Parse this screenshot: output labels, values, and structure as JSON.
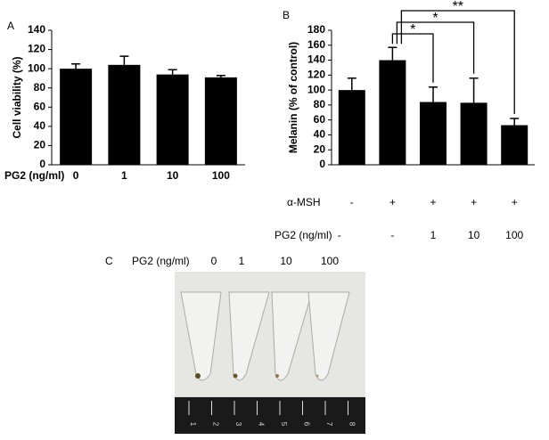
{
  "chart_data": [
    {
      "type": "bar",
      "panel": "A",
      "y_label": "Cell viability (%)",
      "x_label": "PG2 (ng/ml)",
      "categories": [
        "0",
        "1",
        "10",
        "100"
      ],
      "values": [
        100,
        104,
        94,
        91
      ],
      "errors": [
        5,
        9,
        5,
        2
      ],
      "color": "#000000",
      "ylim": [
        0,
        140
      ],
      "yticks": [
        0,
        20,
        40,
        60,
        80,
        100,
        120,
        140
      ]
    },
    {
      "type": "bar",
      "panel": "B",
      "y_label": "Melanin (% of control)",
      "values": [
        100,
        140,
        84,
        83,
        53
      ],
      "errors": [
        16,
        17,
        20,
        33,
        9
      ],
      "color": "#000000",
      "ylim": [
        0,
        180
      ],
      "yticks": [
        0,
        20,
        40,
        60,
        80,
        100,
        120,
        140,
        160,
        180
      ],
      "rows": [
        {
          "label": "α-MSH",
          "values": [
            "-",
            "+",
            "+",
            "+",
            "+"
          ]
        },
        {
          "label": "PG2 (ng/ml)",
          "values": [
            "-",
            "-",
            "1",
            "10",
            "100"
          ]
        }
      ],
      "brackets": [
        {
          "from": 1,
          "to": 2,
          "label": "*"
        },
        {
          "from": 1,
          "to": 3,
          "label": "*"
        },
        {
          "from": 1,
          "to": 4,
          "label": "**"
        }
      ]
    }
  ],
  "panel_c": {
    "panel": "C",
    "label": "PG2 (ng/ml)",
    "samples": [
      "0",
      "1",
      "10",
      "100"
    ],
    "ruler": [
      "1",
      "2",
      "3",
      "4",
      "5",
      "6",
      "7",
      "8"
    ]
  }
}
